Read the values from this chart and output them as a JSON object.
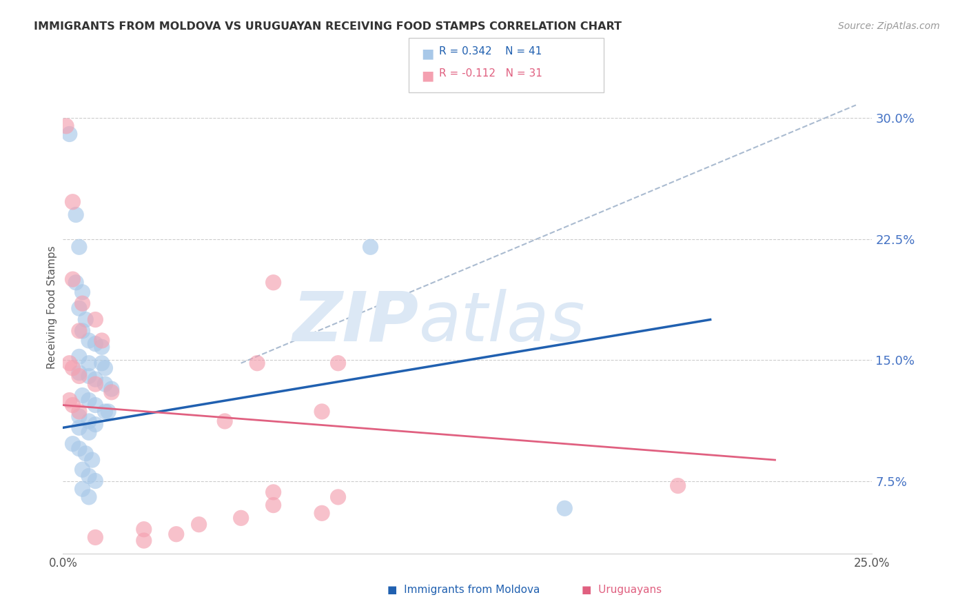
{
  "title": "IMMIGRANTS FROM MOLDOVA VS URUGUAYAN RECEIVING FOOD STAMPS CORRELATION CHART",
  "source": "Source: ZipAtlas.com",
  "ylabel_label": "Receiving Food Stamps",
  "yticks": [
    0.075,
    0.15,
    0.225,
    0.3
  ],
  "ytick_labels": [
    "7.5%",
    "15.0%",
    "22.5%",
    "30.0%"
  ],
  "xlim": [
    0.0,
    0.25
  ],
  "ylim": [
    0.03,
    0.335
  ],
  "label1": "Immigrants from Moldova",
  "label2": "Uruguayans",
  "blue_color": "#a8c8e8",
  "pink_color": "#f4a0b0",
  "blue_line_color": "#2060b0",
  "pink_line_color": "#e06080",
  "blue_scatter": [
    [
      0.002,
      0.29
    ],
    [
      0.004,
      0.24
    ],
    [
      0.005,
      0.22
    ],
    [
      0.004,
      0.198
    ],
    [
      0.006,
      0.192
    ],
    [
      0.005,
      0.182
    ],
    [
      0.007,
      0.175
    ],
    [
      0.006,
      0.168
    ],
    [
      0.008,
      0.162
    ],
    [
      0.01,
      0.16
    ],
    [
      0.012,
      0.158
    ],
    [
      0.005,
      0.152
    ],
    [
      0.008,
      0.148
    ],
    [
      0.012,
      0.148
    ],
    [
      0.013,
      0.145
    ],
    [
      0.005,
      0.142
    ],
    [
      0.008,
      0.14
    ],
    [
      0.01,
      0.138
    ],
    [
      0.013,
      0.135
    ],
    [
      0.015,
      0.132
    ],
    [
      0.006,
      0.128
    ],
    [
      0.008,
      0.125
    ],
    [
      0.01,
      0.122
    ],
    [
      0.013,
      0.118
    ],
    [
      0.014,
      0.118
    ],
    [
      0.005,
      0.115
    ],
    [
      0.008,
      0.112
    ],
    [
      0.01,
      0.11
    ],
    [
      0.005,
      0.108
    ],
    [
      0.008,
      0.105
    ],
    [
      0.003,
      0.098
    ],
    [
      0.005,
      0.095
    ],
    [
      0.007,
      0.092
    ],
    [
      0.009,
      0.088
    ],
    [
      0.006,
      0.082
    ],
    [
      0.008,
      0.078
    ],
    [
      0.01,
      0.075
    ],
    [
      0.006,
      0.07
    ],
    [
      0.008,
      0.065
    ],
    [
      0.155,
      0.058
    ],
    [
      0.095,
      0.22
    ]
  ],
  "pink_scatter": [
    [
      0.001,
      0.295
    ],
    [
      0.003,
      0.248
    ],
    [
      0.003,
      0.2
    ],
    [
      0.065,
      0.198
    ],
    [
      0.006,
      0.185
    ],
    [
      0.01,
      0.175
    ],
    [
      0.005,
      0.168
    ],
    [
      0.012,
      0.162
    ],
    [
      0.002,
      0.148
    ],
    [
      0.003,
      0.145
    ],
    [
      0.005,
      0.14
    ],
    [
      0.01,
      0.135
    ],
    [
      0.015,
      0.13
    ],
    [
      0.002,
      0.125
    ],
    [
      0.003,
      0.122
    ],
    [
      0.005,
      0.118
    ],
    [
      0.06,
      0.148
    ],
    [
      0.08,
      0.118
    ],
    [
      0.065,
      0.068
    ],
    [
      0.085,
      0.065
    ],
    [
      0.065,
      0.06
    ],
    [
      0.08,
      0.055
    ],
    [
      0.055,
      0.052
    ],
    [
      0.042,
      0.048
    ],
    [
      0.025,
      0.045
    ],
    [
      0.035,
      0.042
    ],
    [
      0.01,
      0.04
    ],
    [
      0.025,
      0.038
    ],
    [
      0.19,
      0.072
    ],
    [
      0.085,
      0.148
    ],
    [
      0.05,
      0.112
    ]
  ],
  "blue_line_x": [
    0.0,
    0.2
  ],
  "blue_line_y": [
    0.108,
    0.175
  ],
  "pink_line_x": [
    0.0,
    0.22
  ],
  "pink_line_y": [
    0.122,
    0.088
  ],
  "dash_line_x": [
    0.055,
    0.245
  ],
  "dash_line_y": [
    0.148,
    0.308
  ],
  "background_color": "#ffffff",
  "grid_color": "#cccccc",
  "right_axis_color": "#4472c4",
  "watermark_zip": "ZIP",
  "watermark_atlas": "atlas",
  "watermark_color": "#dce8f5"
}
